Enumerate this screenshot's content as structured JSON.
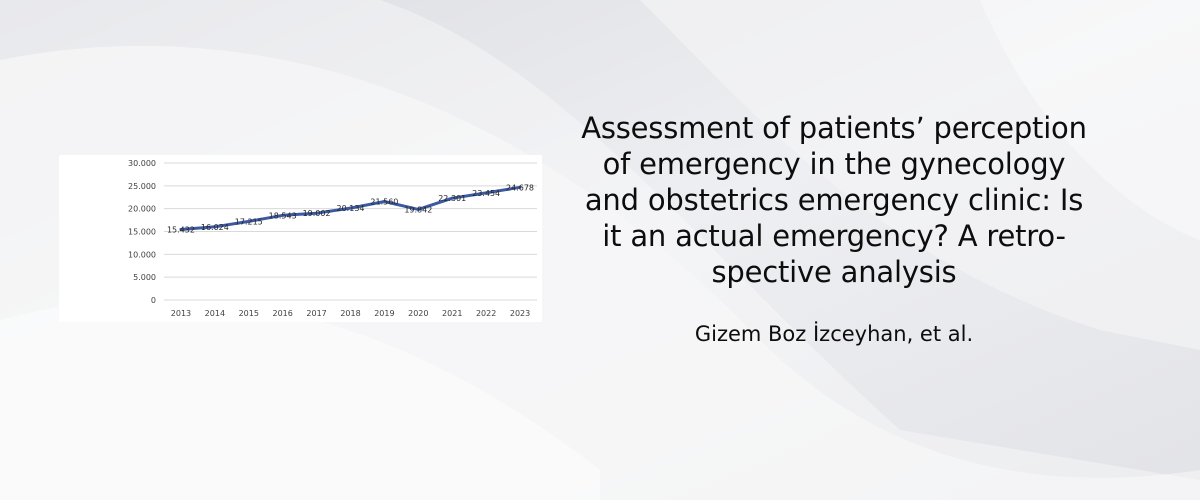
{
  "article": {
    "title_lines": [
      "Assessment of patients’ perception",
      "of emergency in the gynecology",
      "and obstetrics emergency clinic: Is",
      "it an actual emergency? A retro-",
      "spective analysis"
    ],
    "authors": "Gizem Boz İzceyhan, et al."
  },
  "chart_data": {
    "type": "line",
    "title": "",
    "xlabel": "",
    "ylabel": "",
    "categories": [
      "2013",
      "2014",
      "2015",
      "2016",
      "2017",
      "2018",
      "2019",
      "2020",
      "2021",
      "2022",
      "2023"
    ],
    "values": [
      15432,
      16024,
      17215,
      18543,
      19002,
      20134,
      21560,
      19842,
      22301,
      23454,
      24678
    ],
    "data_labels": [
      "15.432",
      "16.024",
      "17.215",
      "18.543",
      "19.002",
      "20.134",
      "21.560",
      "19.842",
      "22.301",
      "23.454",
      "24.678"
    ],
    "y_ticks": [
      0,
      5000,
      10000,
      15000,
      20000,
      25000,
      30000
    ],
    "y_tick_labels": [
      "0",
      "5.000",
      "10.000",
      "15.000",
      "20.000",
      "25.000",
      "30.000"
    ],
    "ylim": [
      0,
      30000
    ],
    "grid": true,
    "legend": "none",
    "line_color": "#3b5aa3"
  }
}
